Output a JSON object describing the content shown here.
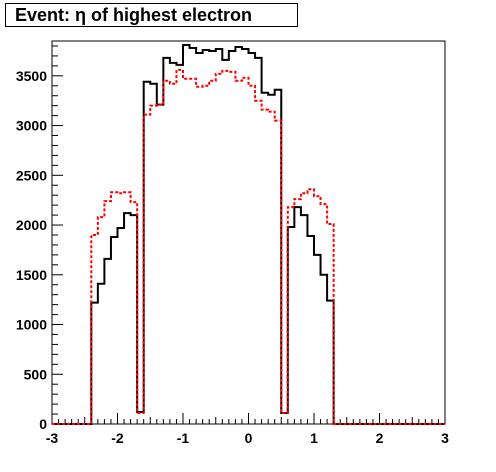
{
  "chart_data": {
    "type": "histogram",
    "title": "Event: η of highest electron",
    "xlabel": "",
    "ylabel": "",
    "xlim": [
      -3,
      3
    ],
    "ylim": [
      0,
      3850
    ],
    "x_ticks": [
      "-3",
      "-2",
      "-1",
      "0",
      "1",
      "2",
      "3"
    ],
    "y_ticks": [
      "0",
      "500",
      "1000",
      "1500",
      "2000",
      "2500",
      "3000",
      "3500"
    ],
    "bin_edges_start": -3.0,
    "bin_width": 0.1,
    "series": [
      {
        "style": "solid",
        "color": "#000000",
        "values": [
          0,
          0,
          0,
          0,
          0,
          0,
          1220,
          1410,
          1660,
          1880,
          1970,
          2120,
          2100,
          120,
          3440,
          3420,
          3210,
          3680,
          3630,
          3610,
          3810,
          3780,
          3730,
          3760,
          3750,
          3770,
          3660,
          3750,
          3790,
          3770,
          3730,
          3680,
          3330,
          3310,
          3360,
          110,
          1980,
          2180,
          2100,
          1890,
          1700,
          1500,
          1240,
          0,
          0,
          0,
          0,
          0,
          0,
          0,
          0,
          0,
          0,
          0,
          0,
          0,
          0,
          0,
          0,
          0
        ]
      },
      {
        "style": "dashed",
        "color": "#ff0000",
        "values": [
          0,
          0,
          0,
          0,
          0,
          0,
          1900,
          2080,
          2240,
          2330,
          2320,
          2330,
          2230,
          110,
          3110,
          3200,
          3210,
          3450,
          3420,
          3560,
          3470,
          3470,
          3390,
          3400,
          3450,
          3520,
          3550,
          3540,
          3450,
          3480,
          3400,
          3250,
          3160,
          3140,
          3050,
          110,
          2180,
          2260,
          2320,
          2360,
          2290,
          2210,
          2010,
          0,
          0,
          0,
          0,
          0,
          0,
          0,
          0,
          0,
          0,
          0,
          0,
          0,
          0,
          0,
          0,
          0
        ]
      }
    ]
  }
}
